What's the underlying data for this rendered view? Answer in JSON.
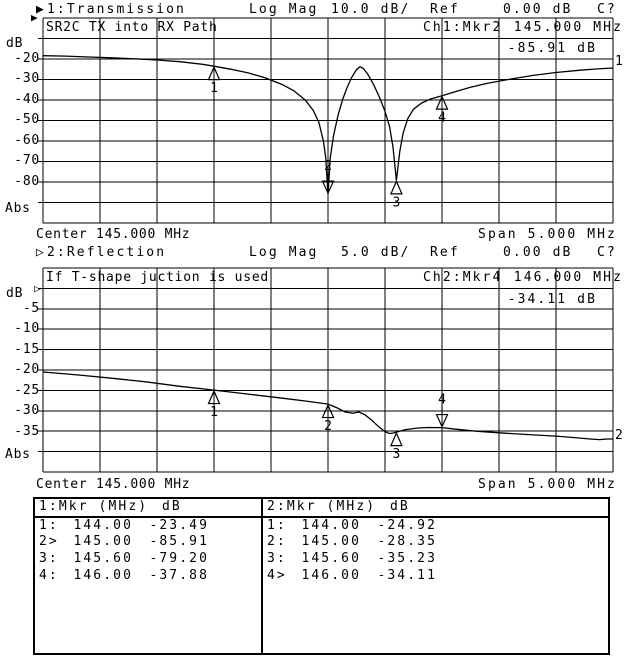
{
  "colors": {
    "foreground": "#000000",
    "background": "#ffffff"
  },
  "chart_data": [
    {
      "type": "line",
      "name": "transmission",
      "header": {
        "indicator": "▶",
        "label": "1:Transmission",
        "format": "Log Mag",
        "scale": "10.0 dB/",
        "ref_label": "Ref",
        "ref_value": "0.00 dB",
        "cal_status": "C?"
      },
      "title": "SR2C TX into RX Path",
      "readout": {
        "channel_marker": "Ch1:Mkr2",
        "freq": "145.000 MHz",
        "value": "-85.91 dB"
      },
      "ylabel": "dB",
      "ref_marker": "▶",
      "yticks": [
        "-20",
        "-30",
        "-40",
        "-50",
        "-60",
        "-70",
        "-80"
      ],
      "abs_label": "Abs",
      "trace_label": "1",
      "xlabel_center": "Center 145.000 MHz",
      "xlabel_span": "Span 5.000 MHz",
      "axis": {
        "x_min_mhz": 142.5,
        "x_max_mhz": 147.5,
        "y_top_db": 0,
        "y_bottom_db": -100,
        "x_divisions": 10,
        "y_divisions": 10,
        "scale_db_per_div": 10.0,
        "grid": true
      },
      "trace_points_mhz_db": [
        [
          142.5,
          -18.4
        ],
        [
          142.7,
          -18.6
        ],
        [
          142.9,
          -19.0
        ],
        [
          143.1,
          -19.4
        ],
        [
          143.3,
          -19.9
        ],
        [
          143.5,
          -20.5
        ],
        [
          143.7,
          -21.3
        ],
        [
          143.9,
          -22.6
        ],
        [
          144.0,
          -23.49
        ],
        [
          144.15,
          -25.0
        ],
        [
          144.3,
          -26.8
        ],
        [
          144.45,
          -29.2
        ],
        [
          144.6,
          -32.5
        ],
        [
          144.7,
          -35.5
        ],
        [
          144.8,
          -40.0
        ],
        [
          144.87,
          -45.0
        ],
        [
          144.92,
          -51.0
        ],
        [
          144.96,
          -60.0
        ],
        [
          144.98,
          -68.0
        ],
        [
          145.0,
          -85.91
        ],
        [
          145.02,
          -68.0
        ],
        [
          145.05,
          -57.0
        ],
        [
          145.09,
          -47.0
        ],
        [
          145.13,
          -39.5
        ],
        [
          145.17,
          -33.5
        ],
        [
          145.21,
          -28.8
        ],
        [
          145.25,
          -25.2
        ],
        [
          145.28,
          -23.8
        ],
        [
          145.31,
          -24.6
        ],
        [
          145.35,
          -27.5
        ],
        [
          145.4,
          -32.5
        ],
        [
          145.45,
          -38.5
        ],
        [
          145.5,
          -45.5
        ],
        [
          145.54,
          -53.0
        ],
        [
          145.57,
          -63.0
        ],
        [
          145.6,
          -79.2
        ],
        [
          145.63,
          -65.0
        ],
        [
          145.66,
          -56.0
        ],
        [
          145.7,
          -49.0
        ],
        [
          145.75,
          -44.5
        ],
        [
          145.82,
          -41.5
        ],
        [
          145.9,
          -39.5
        ],
        [
          146.0,
          -37.88
        ],
        [
          146.1,
          -36.2
        ],
        [
          146.25,
          -33.8
        ],
        [
          146.4,
          -31.8
        ],
        [
          146.6,
          -29.8
        ],
        [
          146.8,
          -28.0
        ],
        [
          147.0,
          -26.6
        ],
        [
          147.2,
          -25.5
        ],
        [
          147.35,
          -24.9
        ],
        [
          147.5,
          -24.4
        ]
      ],
      "markers": [
        {
          "label": "1",
          "freq_mhz": 144.0,
          "value_db": -23.49,
          "active": false
        },
        {
          "label": "2",
          "freq_mhz": 145.0,
          "value_db": -85.91,
          "active": true
        },
        {
          "label": "3",
          "freq_mhz": 145.6,
          "value_db": -79.2,
          "active": false
        },
        {
          "label": "4",
          "freq_mhz": 146.0,
          "value_db": -37.88,
          "active": false
        }
      ]
    },
    {
      "type": "line",
      "name": "reflection",
      "header": {
        "indicator": "▷",
        "label": "2:Reflection",
        "format": "Log Mag",
        "scale": "5.0 dB/",
        "ref_label": "Ref",
        "ref_value": "0.00 dB",
        "cal_status": "C?"
      },
      "title": "If T-shape juction is used",
      "readout": {
        "channel_marker": "Ch2:Mkr4",
        "freq": "146.000 MHz",
        "value": "-34.11 dB"
      },
      "ylabel": "dB",
      "ref_marker": "▷",
      "yticks": [
        "-5",
        "-10",
        "-15",
        "-20",
        "-25",
        "-30",
        "-35"
      ],
      "abs_label": "Abs",
      "trace_label": "2",
      "xlabel_center": "Center 145.000 MHz",
      "xlabel_span": "Span 5.000 MHz",
      "axis": {
        "x_min_mhz": 142.5,
        "x_max_mhz": 147.5,
        "y_top_db": 5,
        "y_bottom_db": -45,
        "x_divisions": 10,
        "y_divisions": 10,
        "scale_db_per_div": 5.0,
        "grid": true
      },
      "trace_points_mhz_db": [
        [
          142.5,
          -20.5
        ],
        [
          142.8,
          -21.2
        ],
        [
          143.1,
          -22.0
        ],
        [
          143.4,
          -22.9
        ],
        [
          143.7,
          -24.0
        ],
        [
          144.0,
          -24.92
        ],
        [
          144.3,
          -25.9
        ],
        [
          144.6,
          -26.9
        ],
        [
          144.8,
          -27.6
        ],
        [
          145.0,
          -28.35
        ],
        [
          145.08,
          -29.3
        ],
        [
          145.15,
          -30.3
        ],
        [
          145.22,
          -30.6
        ],
        [
          145.27,
          -30.3
        ],
        [
          145.32,
          -30.9
        ],
        [
          145.38,
          -32.2
        ],
        [
          145.44,
          -33.8
        ],
        [
          145.5,
          -35.1
        ],
        [
          145.54,
          -35.6
        ],
        [
          145.58,
          -35.4
        ],
        [
          145.6,
          -35.23
        ],
        [
          145.68,
          -34.6
        ],
        [
          145.78,
          -34.25
        ],
        [
          145.88,
          -34.1
        ],
        [
          146.0,
          -34.11
        ],
        [
          146.12,
          -34.5
        ],
        [
          146.3,
          -35.0
        ],
        [
          146.5,
          -35.4
        ],
        [
          146.8,
          -35.9
        ],
        [
          147.0,
          -36.2
        ],
        [
          147.15,
          -36.55
        ],
        [
          147.3,
          -36.9
        ],
        [
          147.38,
          -37.05
        ],
        [
          147.45,
          -36.9
        ],
        [
          147.5,
          -36.9
        ]
      ],
      "markers": [
        {
          "label": "1",
          "freq_mhz": 144.0,
          "value_db": -24.92,
          "active": false
        },
        {
          "label": "2",
          "freq_mhz": 145.0,
          "value_db": -28.35,
          "active": false
        },
        {
          "label": "3",
          "freq_mhz": 145.6,
          "value_db": -35.23,
          "active": false
        },
        {
          "label": "4",
          "freq_mhz": 146.0,
          "value_db": -34.11,
          "active": true
        }
      ]
    }
  ],
  "marker_table": {
    "columns": [
      {
        "header_mkr": "1:Mkr (MHz)",
        "header_db": "dB",
        "rows": [
          {
            "num": "1:",
            "freq": "144.00",
            "db": "-23.49"
          },
          {
            "num": "2>",
            "freq": "145.00",
            "db": "-85.91"
          },
          {
            "num": "3:",
            "freq": "145.60",
            "db": "-79.20"
          },
          {
            "num": "4:",
            "freq": "146.00",
            "db": "-37.88"
          }
        ]
      },
      {
        "header_mkr": "2:Mkr (MHz)",
        "header_db": "dB",
        "rows": [
          {
            "num": "1:",
            "freq": "144.00",
            "db": "-24.92"
          },
          {
            "num": "2:",
            "freq": "145.00",
            "db": "-28.35"
          },
          {
            "num": "3:",
            "freq": "145.60",
            "db": "-35.23"
          },
          {
            "num": "4>",
            "freq": "146.00",
            "db": "-34.11"
          }
        ]
      }
    ]
  }
}
